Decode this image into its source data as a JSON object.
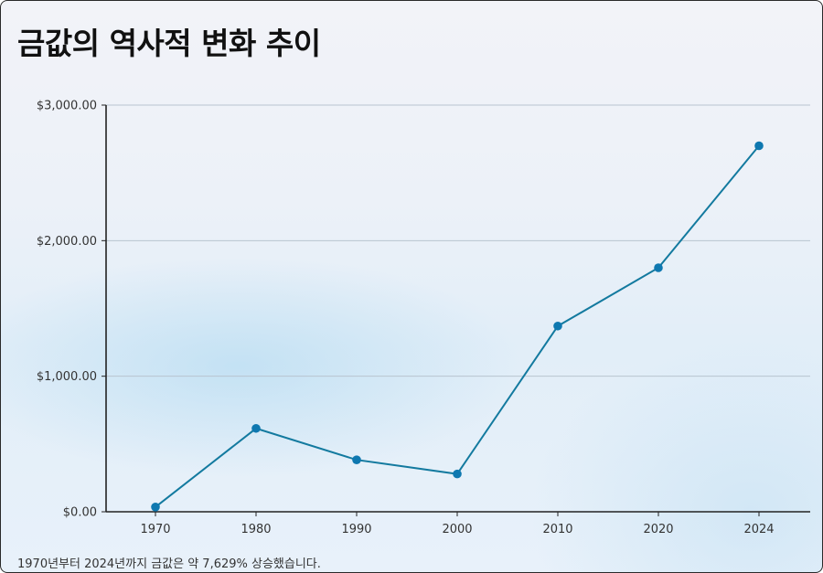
{
  "title": "금값의 역사적 변화 추이",
  "footnote": "1970년부터 2024년까지 금값은 약 7,629% 상승했습니다.",
  "colors": {
    "line": "#137a9f",
    "point": "#0e78b0",
    "grid": "#b8c4cf",
    "axis": "#222222"
  },
  "chart_data": {
    "type": "line",
    "title": "금값의 역사적 변화 추이",
    "xlabel": "",
    "ylabel": "",
    "categories": [
      "1970",
      "1980",
      "1990",
      "2000",
      "2010",
      "2020",
      "2024"
    ],
    "series": [
      {
        "values": [
          35,
          615,
          383,
          279,
          1370,
          1800,
          2700
        ]
      }
    ],
    "ylim": [
      0,
      3000
    ],
    "yticks": [
      0,
      1000,
      2000,
      3000
    ],
    "ytick_labels": [
      "$0.00",
      "$1,000.00",
      "$2,000.00",
      "$3,000.00"
    ],
    "grid": "horizontal",
    "legend": "none"
  }
}
